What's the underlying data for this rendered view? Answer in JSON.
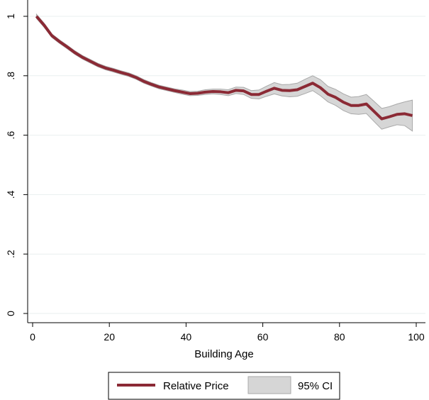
{
  "chart_data": {
    "type": "line",
    "xlabel": "Building Age",
    "ylabel": "",
    "xlim": [
      0,
      100
    ],
    "ylim": [
      0,
      1
    ],
    "x_ticks": [
      0,
      20,
      40,
      60,
      80,
      100
    ],
    "x_tick_labels": [
      "0",
      "20",
      "40",
      "60",
      "80",
      "100"
    ],
    "y_ticks": [
      0,
      0.2,
      0.4,
      0.6,
      0.8,
      1
    ],
    "y_tick_labels": [
      "0",
      ".2",
      ".4",
      ".6",
      ".8",
      "1"
    ],
    "grid": "horizontal",
    "legend_position": "bottom",
    "colors": {
      "line": "#8b2a35",
      "band": "#d6d6d6",
      "band_edge": "#a9a9a9",
      "grid": "#e9efef"
    },
    "series": [
      {
        "name": "Relative Price",
        "x": [
          1,
          3,
          5,
          7,
          9,
          11,
          13,
          15,
          17,
          19,
          21,
          23,
          25,
          27,
          29,
          31,
          33,
          35,
          37,
          39,
          41,
          43,
          45,
          47,
          49,
          51,
          53,
          55,
          57,
          59,
          61,
          63,
          65,
          67,
          69,
          71,
          73,
          75,
          77,
          79,
          81,
          83,
          85,
          87,
          89,
          91,
          93,
          95,
          97,
          99
        ],
        "values": [
          1.0,
          0.97,
          0.935,
          0.915,
          0.897,
          0.878,
          0.862,
          0.849,
          0.836,
          0.826,
          0.819,
          0.811,
          0.804,
          0.794,
          0.781,
          0.771,
          0.762,
          0.756,
          0.75,
          0.745,
          0.74,
          0.741,
          0.745,
          0.747,
          0.746,
          0.743,
          0.751,
          0.749,
          0.737,
          0.737,
          0.748,
          0.758,
          0.751,
          0.75,
          0.753,
          0.764,
          0.775,
          0.76,
          0.738,
          0.727,
          0.711,
          0.7,
          0.7,
          0.705,
          0.68,
          0.655,
          0.662,
          0.67,
          0.672,
          0.666
        ]
      },
      {
        "name": "95% CI",
        "x": [
          1,
          3,
          5,
          7,
          9,
          11,
          13,
          15,
          17,
          19,
          21,
          23,
          25,
          27,
          29,
          31,
          33,
          35,
          37,
          39,
          41,
          43,
          45,
          47,
          49,
          51,
          53,
          55,
          57,
          59,
          61,
          63,
          65,
          67,
          69,
          71,
          73,
          75,
          77,
          79,
          81,
          83,
          85,
          87,
          89,
          91,
          93,
          95,
          97,
          99
        ],
        "lower": [
          0.993,
          0.963,
          0.929,
          0.909,
          0.891,
          0.872,
          0.856,
          0.843,
          0.83,
          0.82,
          0.813,
          0.805,
          0.798,
          0.788,
          0.775,
          0.765,
          0.756,
          0.75,
          0.744,
          0.738,
          0.733,
          0.734,
          0.737,
          0.739,
          0.737,
          0.733,
          0.74,
          0.737,
          0.724,
          0.722,
          0.731,
          0.739,
          0.732,
          0.729,
          0.731,
          0.74,
          0.75,
          0.733,
          0.712,
          0.7,
          0.683,
          0.672,
          0.67,
          0.673,
          0.646,
          0.62,
          0.628,
          0.635,
          0.632,
          0.614
        ],
        "upper": [
          1.007,
          0.977,
          0.941,
          0.921,
          0.903,
          0.884,
          0.868,
          0.855,
          0.842,
          0.832,
          0.825,
          0.817,
          0.81,
          0.8,
          0.787,
          0.777,
          0.768,
          0.762,
          0.756,
          0.752,
          0.747,
          0.748,
          0.753,
          0.755,
          0.755,
          0.753,
          0.762,
          0.761,
          0.75,
          0.752,
          0.765,
          0.777,
          0.77,
          0.771,
          0.775,
          0.788,
          0.8,
          0.787,
          0.764,
          0.754,
          0.739,
          0.728,
          0.73,
          0.737,
          0.714,
          0.69,
          0.696,
          0.705,
          0.712,
          0.718
        ]
      }
    ]
  }
}
